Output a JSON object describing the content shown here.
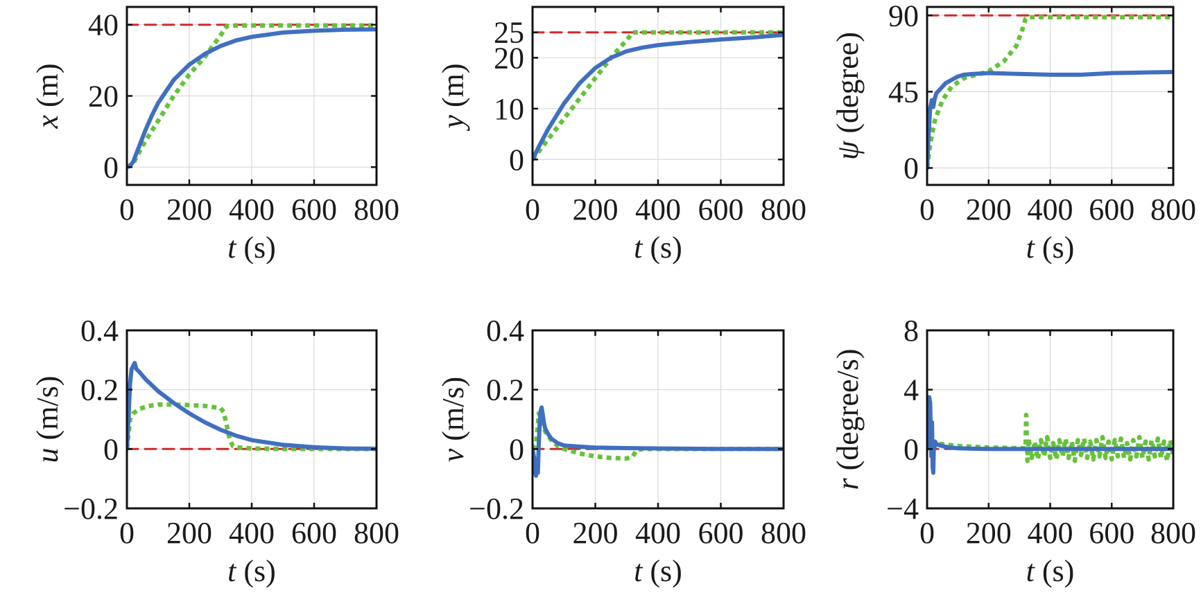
{
  "colors": {
    "controller": "#3f6fc0",
    "reference": "#d62728",
    "comparison": "#66c23a",
    "grid": "#d9d9d9",
    "axis": "#111111"
  },
  "chart_data": [
    {
      "type": "line",
      "id": "x",
      "ylabel": {
        "var": "x",
        "unit": " (m)"
      },
      "xlabel": {
        "var": "t",
        "unit": " (s)"
      },
      "xlim": [
        0,
        800
      ],
      "ylim": [
        -5,
        45
      ],
      "xticks": [
        0,
        200,
        400,
        600,
        800
      ],
      "yticks": [
        0,
        20,
        40
      ],
      "yticklabels": [
        "0",
        "20",
        "40"
      ],
      "grid": true,
      "series": [
        {
          "role": "reference",
          "style": "dashed",
          "x": [
            0,
            800
          ],
          "y": [
            40,
            40
          ]
        },
        {
          "role": "comparison",
          "style": "dotted",
          "x": [
            0,
            20,
            50,
            100,
            150,
            200,
            250,
            300,
            320,
            350,
            400,
            500,
            600,
            700,
            800
          ],
          "y": [
            0,
            1,
            6,
            13,
            20,
            26,
            31,
            37,
            39.6,
            39.8,
            39.8,
            39.8,
            39.8,
            39.8,
            39.8
          ]
        },
        {
          "role": "controller",
          "style": "solid",
          "x": [
            0,
            10,
            20,
            40,
            60,
            80,
            100,
            150,
            200,
            250,
            300,
            350,
            400,
            500,
            600,
            700,
            800
          ],
          "y": [
            0,
            0.3,
            1.5,
            6,
            10.5,
            14.5,
            18,
            24.5,
            28.8,
            31.8,
            34,
            35.6,
            36.6,
            37.8,
            38.3,
            38.6,
            38.7
          ]
        }
      ]
    },
    {
      "type": "line",
      "id": "y",
      "ylabel": {
        "var": "y",
        "unit": " (m)"
      },
      "xlabel": {
        "var": "t",
        "unit": " (s)"
      },
      "xlim": [
        0,
        800
      ],
      "ylim": [
        -5,
        30
      ],
      "xticks": [
        0,
        200,
        400,
        600,
        800
      ],
      "yticks": [
        0,
        10,
        20,
        25
      ],
      "yticklabels": [
        "0",
        "10",
        "20",
        "25"
      ],
      "grid": true,
      "series": [
        {
          "role": "reference",
          "style": "dashed",
          "x": [
            0,
            800
          ],
          "y": [
            25,
            25
          ]
        },
        {
          "role": "comparison",
          "style": "dotted",
          "x": [
            0,
            50,
            100,
            150,
            200,
            250,
            300,
            320,
            350,
            400,
            500,
            600,
            700,
            800
          ],
          "y": [
            0,
            4,
            8,
            12,
            16,
            20,
            23.5,
            25,
            25,
            25,
            25,
            25,
            25,
            25
          ]
        },
        {
          "role": "controller",
          "style": "solid",
          "x": [
            0,
            20,
            50,
            100,
            150,
            200,
            250,
            300,
            350,
            400,
            500,
            600,
            700,
            800
          ],
          "y": [
            0,
            2.5,
            6,
            11,
            15,
            18,
            20,
            21.3,
            22,
            22.5,
            23.1,
            23.6,
            24,
            24.5
          ]
        }
      ]
    },
    {
      "type": "line",
      "id": "psi",
      "ylabel": {
        "var": "ψ",
        "unit": " (degree)"
      },
      "xlabel": {
        "var": "t",
        "unit": " (s)"
      },
      "xlim": [
        0,
        800
      ],
      "ylim": [
        -10,
        95
      ],
      "xticks": [
        0,
        200,
        400,
        600,
        800
      ],
      "yticks": [
        0,
        45,
        90
      ],
      "yticklabels": [
        "0",
        "45",
        "90"
      ],
      "grid": true,
      "series": [
        {
          "role": "reference",
          "style": "dashed",
          "x": [
            0,
            800
          ],
          "y": [
            90,
            90
          ]
        },
        {
          "role": "comparison",
          "style": "dotted",
          "x": [
            0,
            10,
            25,
            50,
            80,
            120,
            160,
            200,
            250,
            290,
            310,
            320,
            330,
            350,
            400,
            500,
            600,
            700,
            800
          ],
          "y": [
            0,
            14,
            28,
            40,
            48,
            53,
            55,
            57,
            63,
            72,
            82,
            88,
            89,
            89,
            89,
            89,
            89,
            89,
            89
          ]
        },
        {
          "role": "controller",
          "style": "solid",
          "x": [
            0,
            5,
            10,
            15,
            20,
            25,
            30,
            40,
            60,
            80,
            100,
            120,
            150,
            200,
            300,
            400,
            500,
            550,
            600,
            700,
            800
          ],
          "y": [
            0,
            20,
            35,
            40,
            36,
            41,
            44,
            46,
            50,
            52,
            54,
            55,
            55.5,
            56,
            55.5,
            55,
            55,
            55.5,
            56,
            56.3,
            56.6
          ]
        }
      ]
    },
    {
      "type": "line",
      "id": "u",
      "ylabel": {
        "var": "u",
        "unit": " (m/s)"
      },
      "xlabel": {
        "var": "t",
        "unit": " (s)"
      },
      "xlim": [
        0,
        800
      ],
      "ylim": [
        -0.2,
        0.4
      ],
      "xticks": [
        0,
        200,
        400,
        600,
        800
      ],
      "yticks": [
        -0.2,
        0,
        0.2,
        0.4
      ],
      "yticklabels": [
        "−0.2",
        "0",
        "0.2",
        "0.4"
      ],
      "grid": true,
      "series": [
        {
          "role": "reference",
          "style": "dashed",
          "x": [
            0,
            800
          ],
          "y": [
            0,
            0
          ]
        },
        {
          "role": "comparison",
          "style": "dotted",
          "x": [
            0,
            10,
            20,
            40,
            70,
            100,
            150,
            200,
            250,
            300,
            310,
            320,
            330,
            340,
            360,
            400,
            500,
            600,
            700,
            800
          ],
          "y": [
            0,
            0.1,
            0.12,
            0.135,
            0.145,
            0.15,
            0.15,
            0.148,
            0.145,
            0.138,
            0.125,
            0.08,
            0.03,
            0.01,
            0.005,
            0.002,
            0,
            0,
            0,
            0
          ]
        },
        {
          "role": "controller",
          "style": "solid",
          "x": [
            0,
            5,
            10,
            15,
            20,
            25,
            30,
            40,
            60,
            80,
            100,
            150,
            200,
            250,
            300,
            350,
            400,
            500,
            600,
            700,
            800
          ],
          "y": [
            0,
            0.1,
            0.22,
            0.27,
            0.28,
            0.29,
            0.27,
            0.26,
            0.235,
            0.215,
            0.195,
            0.155,
            0.12,
            0.09,
            0.065,
            0.045,
            0.03,
            0.014,
            0.006,
            0.002,
            0.001
          ]
        }
      ]
    },
    {
      "type": "line",
      "id": "v",
      "ylabel": {
        "var": "v",
        "unit": " (m/s)"
      },
      "xlabel": {
        "var": "t",
        "unit": " (s)"
      },
      "xlim": [
        0,
        800
      ],
      "ylim": [
        -0.2,
        0.4
      ],
      "xticks": [
        0,
        200,
        400,
        600,
        800
      ],
      "yticks": [
        -0.2,
        0,
        0.2,
        0.4
      ],
      "yticklabels": [
        "−0.2",
        "0",
        "0.2",
        "0.4"
      ],
      "grid": true,
      "series": [
        {
          "role": "reference",
          "style": "dashed",
          "x": [
            0,
            800
          ],
          "y": [
            0,
            0
          ]
        },
        {
          "role": "comparison",
          "style": "dotted",
          "x": [
            0,
            10,
            15,
            20,
            25,
            30,
            40,
            60,
            80,
            100,
            150,
            200,
            250,
            300,
            320,
            330,
            350,
            400,
            500,
            600,
            700,
            800
          ],
          "y": [
            0,
            0.01,
            0.06,
            0.12,
            0.11,
            0.09,
            0.06,
            0.03,
            0.01,
            0,
            -0.015,
            -0.025,
            -0.03,
            -0.032,
            -0.025,
            -0.005,
            0,
            0,
            0,
            0,
            0,
            0
          ]
        },
        {
          "role": "controller",
          "style": "solid",
          "x": [
            0,
            5,
            8,
            11,
            14,
            17,
            20,
            23,
            26,
            29,
            32,
            36,
            40,
            50,
            60,
            80,
            100,
            150,
            200,
            300,
            400,
            500,
            600,
            700,
            800
          ],
          "y": [
            0,
            -0.03,
            -0.07,
            -0.09,
            -0.05,
            -0.08,
            0.02,
            0.09,
            0.13,
            0.14,
            0.12,
            0.09,
            0.07,
            0.05,
            0.035,
            0.02,
            0.012,
            0.008,
            0.005,
            0.003,
            0.002,
            0.001,
            0,
            0,
            0
          ]
        }
      ]
    },
    {
      "type": "line",
      "id": "r",
      "ylabel": {
        "var": "r",
        "unit": " (degree/s)"
      },
      "xlabel": {
        "var": "t",
        "unit": " (s)"
      },
      "xlim": [
        0,
        800
      ],
      "ylim": [
        -4,
        8
      ],
      "xticks": [
        0,
        200,
        400,
        600,
        800
      ],
      "yticks": [
        -4,
        0,
        4,
        8
      ],
      "yticklabels": [
        "−4",
        "0",
        "4",
        "8"
      ],
      "grid": true,
      "series": [
        {
          "role": "reference",
          "style": "dashed",
          "x": [
            0,
            800
          ],
          "y": [
            0,
            0
          ]
        },
        {
          "role": "comparison",
          "style": "dotted",
          "x": [
            0,
            5,
            10,
            15,
            20,
            30,
            40,
            60,
            80,
            100,
            150,
            200,
            250,
            300,
            320,
            322,
            326,
            330,
            340,
            350,
            360,
            370,
            380,
            390,
            400,
            410,
            420,
            430,
            440,
            450,
            460,
            470,
            480,
            490,
            500,
            510,
            520,
            530,
            540,
            550,
            560,
            570,
            580,
            590,
            600,
            610,
            620,
            630,
            640,
            650,
            660,
            670,
            680,
            690,
            700,
            710,
            720,
            730,
            740,
            750,
            760,
            770,
            780,
            790,
            800
          ],
          "y": [
            0,
            0.6,
            0.9,
            0.7,
            0.5,
            0.4,
            0.35,
            0.3,
            0.25,
            0.2,
            0.15,
            0.1,
            0.08,
            0.05,
            0.05,
            2.3,
            -0.8,
            0.7,
            -0.6,
            0.5,
            -0.7,
            0.6,
            -0.5,
            0.8,
            -0.6,
            0.4,
            -0.7,
            0.6,
            -0.5,
            0.7,
            -0.6,
            0.5,
            -0.8,
            0.6,
            -0.4,
            0.7,
            -0.6,
            0.5,
            -0.7,
            0.6,
            -0.5,
            0.8,
            -0.6,
            0.5,
            -0.7,
            0.6,
            -0.5,
            0.7,
            -0.6,
            0.4,
            -0.7,
            0.6,
            -0.5,
            0.8,
            -0.6,
            0.5,
            -0.7,
            0.6,
            -0.5,
            0.7,
            -0.6,
            0.5,
            -0.8,
            0.6,
            -0.4
          ]
        },
        {
          "role": "controller",
          "style": "solid",
          "x": [
            0,
            4,
            7,
            10,
            12,
            14,
            16,
            18,
            20,
            22,
            24,
            26,
            30,
            40,
            60,
            80,
            100,
            150,
            200,
            300,
            400,
            500,
            600,
            700,
            800
          ],
          "y": [
            0,
            2.2,
            3.5,
            3.1,
            1.2,
            -0.5,
            1.8,
            -1.2,
            -1.6,
            0.3,
            0.1,
            0.5,
            0.35,
            0.25,
            0.15,
            0.1,
            0.05,
            0.02,
            0,
            0,
            0,
            0,
            0,
            0,
            0
          ]
        }
      ]
    }
  ]
}
